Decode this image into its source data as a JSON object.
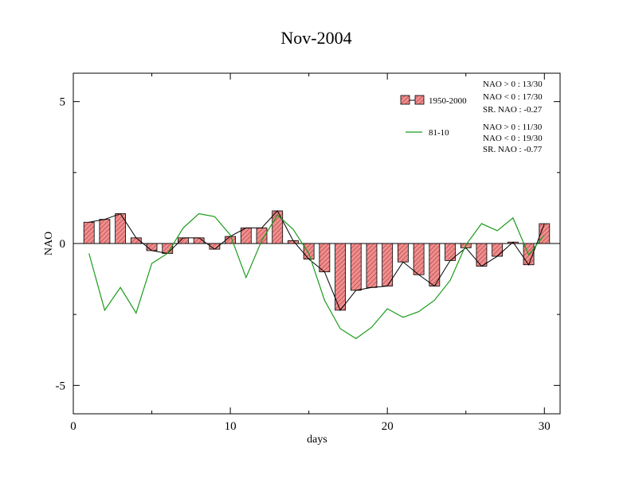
{
  "colors": {
    "bar_fill": "#ef8f8f",
    "bar_hatch": "#c0392b",
    "bar_stroke": "#000000",
    "black_line": "#000000",
    "green_line": "#1a9b1a",
    "frame": "#000000"
  },
  "chart_data": {
    "type": "bar",
    "title": "Nov-2004",
    "xlabel": "days",
    "ylabel": "NAO",
    "xlim": [
      0,
      31
    ],
    "ylim": [
      -6,
      6
    ],
    "xticks": [
      0,
      10,
      20,
      30
    ],
    "xtick_labels": [
      "0",
      "10",
      "20",
      "30"
    ],
    "yticks": [
      5,
      0,
      -5
    ],
    "ytick_labels": [
      "5",
      "0",
      "-5"
    ],
    "grid": false,
    "legend_position": "top-right",
    "x": [
      1,
      2,
      3,
      4,
      5,
      6,
      7,
      8,
      9,
      10,
      11,
      12,
      13,
      14,
      15,
      16,
      17,
      18,
      19,
      20,
      21,
      22,
      23,
      24,
      25,
      26,
      27,
      28,
      29,
      30
    ],
    "series": [
      {
        "name": "1950-2000",
        "style": "bar+line",
        "values": [
          0.75,
          0.85,
          1.05,
          0.2,
          -0.25,
          -0.35,
          0.2,
          0.2,
          -0.2,
          0.25,
          0.55,
          0.55,
          1.15,
          0.1,
          -0.55,
          -1.0,
          -2.35,
          -1.65,
          -1.55,
          -1.5,
          -0.65,
          -1.1,
          -1.5,
          -0.6,
          -0.15,
          -0.8,
          -0.45,
          0.05,
          -0.75,
          0.7
        ]
      },
      {
        "name": "81-10",
        "style": "line",
        "values": [
          -0.35,
          -2.35,
          -1.55,
          -2.45,
          -0.7,
          -0.35,
          0.55,
          1.05,
          0.95,
          0.3,
          -1.2,
          0.1,
          1.0,
          0.5,
          -0.35,
          -2.0,
          -3.0,
          -3.35,
          -2.95,
          -2.3,
          -2.6,
          -2.4,
          -2.0,
          -1.3,
          -0.05,
          0.7,
          0.45,
          0.9,
          -0.4,
          0.3
        ]
      }
    ],
    "annotations": {
      "set1": [
        "NAO > 0 : 13/30",
        "NAO < 0 : 17/30",
        "SR. NAO : -0.27"
      ],
      "set2": [
        "NAO > 0 : 11/30",
        "NAO < 0 : 19/30",
        "SR. NAO : -0.77"
      ]
    }
  }
}
